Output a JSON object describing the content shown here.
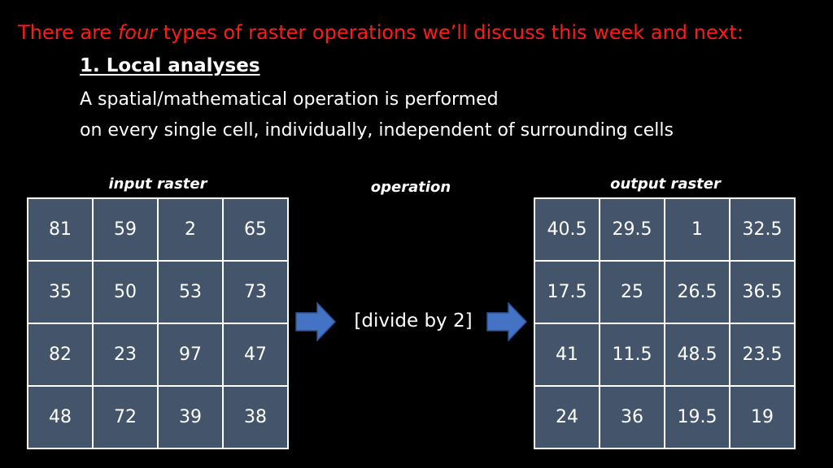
{
  "slide": {
    "headline_pre": "There are ",
    "headline_em": "four",
    "headline_post": " types of raster operations we’ll discuss this week and next:",
    "section_title": "1. Local analyses",
    "description_line1": "A spatial/mathematical operation is performed",
    "description_line2": "on every single cell, individually, independent of surrounding cells",
    "input_label": "input raster",
    "operation_label": "operation",
    "output_label": "output raster",
    "operation_text": "[divide by 2]",
    "input_raster": [
      [
        "81",
        "59",
        "2",
        "65"
      ],
      [
        "35",
        "50",
        "53",
        "73"
      ],
      [
        "82",
        "23",
        "97",
        "47"
      ],
      [
        "48",
        "72",
        "39",
        "38"
      ]
    ],
    "output_raster": [
      [
        "40.5",
        "29.5",
        "1",
        "32.5"
      ],
      [
        "17.5",
        "25",
        "26.5",
        "36.5"
      ],
      [
        "41",
        "11.5",
        "48.5",
        "23.5"
      ],
      [
        "24",
        "36",
        "19.5",
        "19"
      ]
    ],
    "arrow_icon": "right-arrow-icon",
    "colors": {
      "background": "#000000",
      "headline": "#ff1a1a",
      "text": "#ffffff",
      "cell_fill": "#44546a",
      "arrow": "#4472c4"
    }
  }
}
